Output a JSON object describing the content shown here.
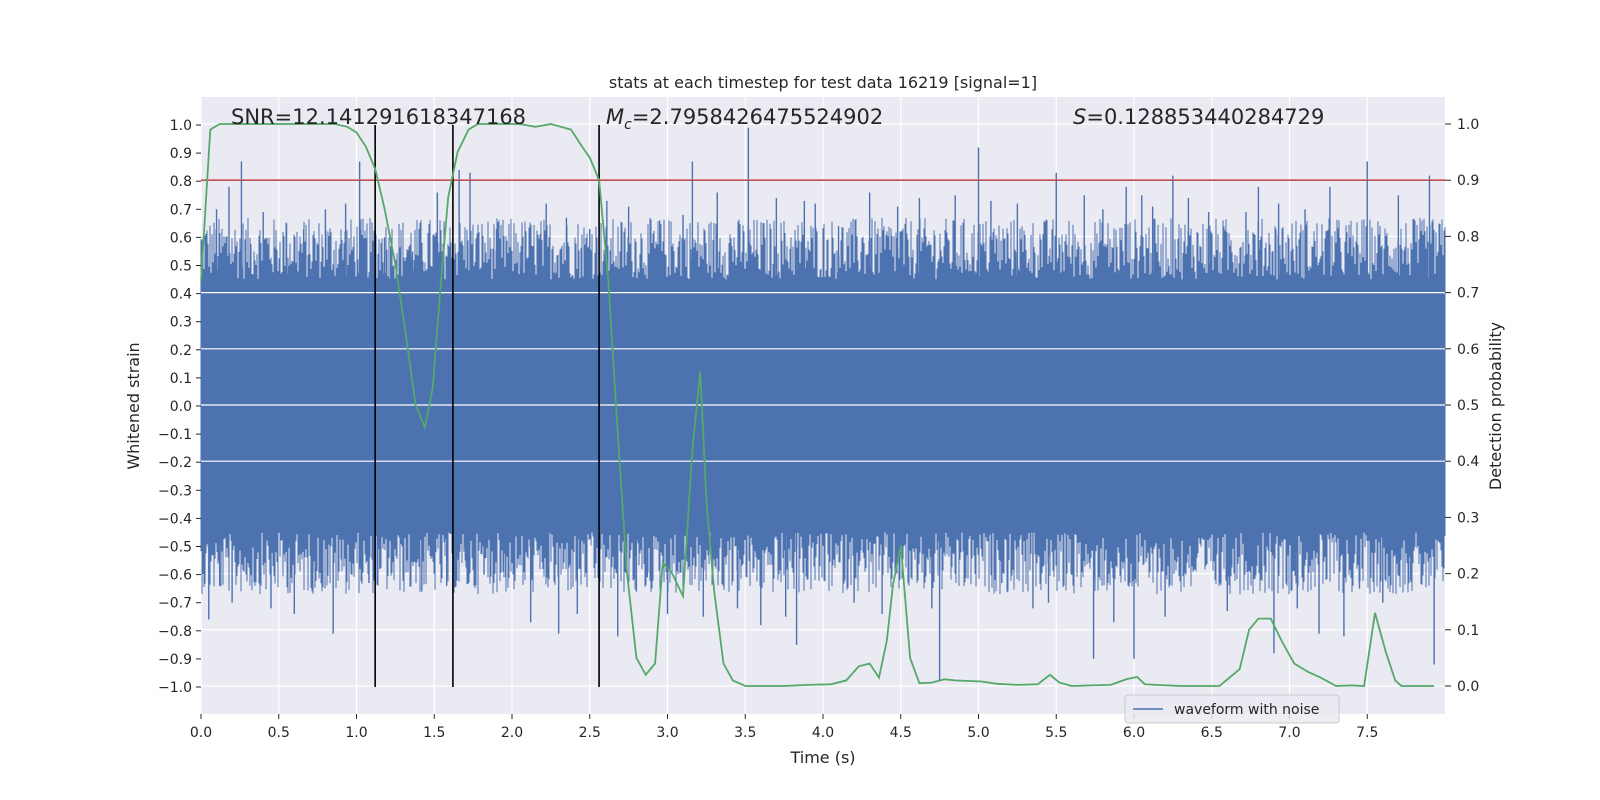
{
  "chart_data": {
    "type": "line",
    "title": "stats at each timestep for test data 16219 [signal=1]",
    "xlabel": "Time (s)",
    "ylabel": "Whitened strain",
    "y2label": "Detection probability",
    "xlim": [
      0,
      7.99
    ],
    "ylim": [
      -1.1,
      1.1
    ],
    "y2lim": [
      -0.045,
      1.045
    ],
    "x_ticks": [
      "0.0",
      "0.5",
      "1.0",
      "1.5",
      "2.0",
      "2.5",
      "3.0",
      "3.5",
      "4.0",
      "4.5",
      "5.0",
      "5.5",
      "6.0",
      "6.5",
      "7.0",
      "7.5"
    ],
    "y_ticks": [
      "1.0",
      "0.9",
      "0.8",
      "0.7",
      "0.6",
      "0.5",
      "0.4",
      "0.3",
      "0.2",
      "0.1",
      "0.0",
      "−0.1",
      "−0.2",
      "−0.3",
      "−0.4",
      "−0.5",
      "−0.6",
      "−0.7",
      "−0.8",
      "−0.9",
      "−1.0"
    ],
    "y2_ticks": [
      "1.0",
      "0.9",
      "0.8",
      "0.7",
      "0.6",
      "0.5",
      "0.4",
      "0.3",
      "0.2",
      "0.1",
      "0.0"
    ],
    "annotations": {
      "snr": "SNR=12.141291618347168",
      "mc_symbol": "M",
      "mc_sub": "c",
      "mc_value": "=2.7958426475524902",
      "s_symbol": "S",
      "s_value": "=0.128853440284729"
    },
    "legend": {
      "label": "waveform with noise",
      "location": "lower right"
    },
    "threshold": {
      "y2": 0.9,
      "color": "#c44e52"
    },
    "vlines": [
      1.12,
      1.62,
      2.56
    ],
    "waveform": {
      "name": "waveform with noise",
      "color": "#4c72b0",
      "core_amplitude": 0.4,
      "spike_peaks": [
        {
          "x": 0.03,
          "y": 0.6
        },
        {
          "x": 0.05,
          "y": -0.76
        },
        {
          "x": 0.1,
          "y": 0.7
        },
        {
          "x": 0.12,
          "y": -0.64
        },
        {
          "x": 0.18,
          "y": 0.78
        },
        {
          "x": 0.2,
          "y": -0.7
        },
        {
          "x": 0.26,
          "y": 0.87
        },
        {
          "x": 0.35,
          "y": -0.6
        },
        {
          "x": 0.4,
          "y": 0.69
        },
        {
          "x": 0.45,
          "y": -0.72
        },
        {
          "x": 0.55,
          "y": 0.65
        },
        {
          "x": 0.6,
          "y": -0.74
        },
        {
          "x": 0.66,
          "y": 0.63
        },
        {
          "x": 0.72,
          "y": -0.59
        },
        {
          "x": 0.8,
          "y": 0.7
        },
        {
          "x": 0.85,
          "y": -0.81
        },
        {
          "x": 0.93,
          "y": 0.72
        },
        {
          "x": 1.02,
          "y": 0.87
        },
        {
          "x": 1.08,
          "y": -0.63
        },
        {
          "x": 1.15,
          "y": -0.58
        },
        {
          "x": 1.18,
          "y": 0.6
        },
        {
          "x": 1.22,
          "y": 0.57
        },
        {
          "x": 1.3,
          "y": -0.6
        },
        {
          "x": 1.36,
          "y": 0.55
        },
        {
          "x": 1.42,
          "y": -0.66
        },
        {
          "x": 1.52,
          "y": 0.76
        },
        {
          "x": 1.58,
          "y": -0.64
        },
        {
          "x": 1.66,
          "y": 0.84
        },
        {
          "x": 1.7,
          "y": -0.55
        },
        {
          "x": 1.73,
          "y": 0.83
        },
        {
          "x": 1.82,
          "y": -0.6
        },
        {
          "x": 1.9,
          "y": 0.63
        },
        {
          "x": 1.96,
          "y": -0.61
        },
        {
          "x": 2.06,
          "y": 0.57
        },
        {
          "x": 2.12,
          "y": -0.77
        },
        {
          "x": 2.2,
          "y": -0.58
        },
        {
          "x": 2.22,
          "y": 0.72
        },
        {
          "x": 2.3,
          "y": -0.81
        },
        {
          "x": 2.35,
          "y": 0.67
        },
        {
          "x": 2.42,
          "y": -0.74
        },
        {
          "x": 2.5,
          "y": 0.63
        },
        {
          "x": 2.61,
          "y": 0.73
        },
        {
          "x": 2.68,
          "y": -0.82
        },
        {
          "x": 2.75,
          "y": 0.71
        },
        {
          "x": 2.8,
          "y": -0.66
        },
        {
          "x": 2.87,
          "y": -0.61
        },
        {
          "x": 2.95,
          "y": 0.66
        },
        {
          "x": 3.0,
          "y": -0.74
        },
        {
          "x": 3.1,
          "y": 0.68
        },
        {
          "x": 3.16,
          "y": 0.87
        },
        {
          "x": 3.23,
          "y": -0.75
        },
        {
          "x": 3.32,
          "y": 0.76
        },
        {
          "x": 3.45,
          "y": -0.72
        },
        {
          "x": 3.52,
          "y": 0.99
        },
        {
          "x": 3.6,
          "y": -0.78
        },
        {
          "x": 3.7,
          "y": 0.74
        },
        {
          "x": 3.76,
          "y": -0.75
        },
        {
          "x": 3.83,
          "y": -0.85
        },
        {
          "x": 3.88,
          "y": 0.73
        },
        {
          "x": 3.95,
          "y": 0.72
        },
        {
          "x": 4.1,
          "y": 0.64
        },
        {
          "x": 4.2,
          "y": -0.7
        },
        {
          "x": 4.3,
          "y": 0.76
        },
        {
          "x": 4.38,
          "y": -0.74
        },
        {
          "x": 4.48,
          "y": 0.71
        },
        {
          "x": 4.55,
          "y": -0.63
        },
        {
          "x": 4.62,
          "y": 0.74
        },
        {
          "x": 4.7,
          "y": -0.72
        },
        {
          "x": 4.75,
          "y": -0.98
        },
        {
          "x": 4.85,
          "y": 0.75
        },
        {
          "x": 5.0,
          "y": 0.92
        },
        {
          "x": 5.08,
          "y": 0.73
        },
        {
          "x": 5.15,
          "y": -0.63
        },
        {
          "x": 5.25,
          "y": 0.72
        },
        {
          "x": 5.35,
          "y": -0.72
        },
        {
          "x": 5.45,
          "y": -0.7
        },
        {
          "x": 5.5,
          "y": 0.83
        },
        {
          "x": 5.6,
          "y": -0.6
        },
        {
          "x": 5.68,
          "y": 0.75
        },
        {
          "x": 5.74,
          "y": -0.9
        },
        {
          "x": 5.8,
          "y": 0.7
        },
        {
          "x": 5.87,
          "y": -0.77
        },
        {
          "x": 5.95,
          "y": 0.78
        },
        {
          "x": 6.0,
          "y": -0.9
        },
        {
          "x": 6.05,
          "y": 0.75
        },
        {
          "x": 6.12,
          "y": 0.71
        },
        {
          "x": 6.2,
          "y": -0.75
        },
        {
          "x": 6.25,
          "y": 0.82
        },
        {
          "x": 6.35,
          "y": 0.74
        },
        {
          "x": 6.48,
          "y": 0.69
        },
        {
          "x": 6.6,
          "y": -0.73
        },
        {
          "x": 6.72,
          "y": 0.69
        },
        {
          "x": 6.8,
          "y": 0.78
        },
        {
          "x": 6.9,
          "y": -0.88
        },
        {
          "x": 6.93,
          "y": 0.72
        },
        {
          "x": 7.05,
          "y": -0.72
        },
        {
          "x": 7.1,
          "y": 0.7
        },
        {
          "x": 7.19,
          "y": -0.81
        },
        {
          "x": 7.26,
          "y": 0.78
        },
        {
          "x": 7.35,
          "y": -0.82
        },
        {
          "x": 7.45,
          "y": -0.65
        },
        {
          "x": 7.5,
          "y": 0.87
        },
        {
          "x": 7.6,
          "y": -0.7
        },
        {
          "x": 7.7,
          "y": 0.75
        },
        {
          "x": 7.78,
          "y": -0.62
        },
        {
          "x": 7.9,
          "y": 0.82
        },
        {
          "x": 7.93,
          "y": -0.92
        }
      ]
    },
    "detection_probability": {
      "name": "detection probability",
      "color": "#55a868",
      "x": [
        0.0,
        0.06,
        0.12,
        0.2,
        0.3,
        0.45,
        0.6,
        0.75,
        0.86,
        0.94,
        1.0,
        1.06,
        1.12,
        1.18,
        1.25,
        1.32,
        1.38,
        1.44,
        1.49,
        1.54,
        1.59,
        1.65,
        1.72,
        1.78,
        1.85,
        1.95,
        2.05,
        2.15,
        2.25,
        2.38,
        2.45,
        2.5,
        2.56,
        2.62,
        2.68,
        2.74,
        2.8,
        2.86,
        2.92,
        2.97,
        3.03,
        3.1,
        3.16,
        3.21,
        3.25,
        3.3,
        3.36,
        3.42,
        3.5,
        3.6,
        3.75,
        3.9,
        4.05,
        4.15,
        4.23,
        4.3,
        4.36,
        4.41,
        4.45,
        4.5,
        4.56,
        4.62,
        4.7,
        4.78,
        4.85,
        4.92,
        5.02,
        5.12,
        5.25,
        5.38,
        5.46,
        5.52,
        5.6,
        5.72,
        5.85,
        5.95,
        6.02,
        6.07,
        6.14,
        6.22,
        6.3,
        6.4,
        6.55,
        6.68,
        6.74,
        6.8,
        6.88,
        6.95,
        7.03,
        7.12,
        7.2,
        7.3,
        7.4,
        7.48,
        7.55,
        7.62,
        7.68,
        7.72,
        7.79,
        7.86,
        7.93
      ],
      "y": [
        0.72,
        0.99,
        1.0,
        1.0,
        1.0,
        1.0,
        1.0,
        1.0,
        1.0,
        0.995,
        0.985,
        0.96,
        0.92,
        0.85,
        0.75,
        0.62,
        0.5,
        0.46,
        0.53,
        0.71,
        0.87,
        0.95,
        0.99,
        1.0,
        1.0,
        1.0,
        1.0,
        0.995,
        1.0,
        0.99,
        0.96,
        0.94,
        0.9,
        0.72,
        0.45,
        0.2,
        0.05,
        0.02,
        0.04,
        0.22,
        0.2,
        0.16,
        0.42,
        0.56,
        0.33,
        0.17,
        0.04,
        0.01,
        0.0,
        0.0,
        0.0,
        0.002,
        0.003,
        0.01,
        0.035,
        0.04,
        0.015,
        0.08,
        0.18,
        0.25,
        0.05,
        0.005,
        0.006,
        0.012,
        0.01,
        0.009,
        0.008,
        0.004,
        0.002,
        0.003,
        0.02,
        0.006,
        0.0,
        0.001,
        0.002,
        0.012,
        0.016,
        0.003,
        0.002,
        0.001,
        0.0,
        0.0,
        0.0,
        0.03,
        0.1,
        0.12,
        0.12,
        0.08,
        0.04,
        0.025,
        0.015,
        0.0,
        0.001,
        0.0,
        0.13,
        0.06,
        0.01,
        0.0,
        0.0,
        0.0,
        0.0
      ]
    }
  }
}
